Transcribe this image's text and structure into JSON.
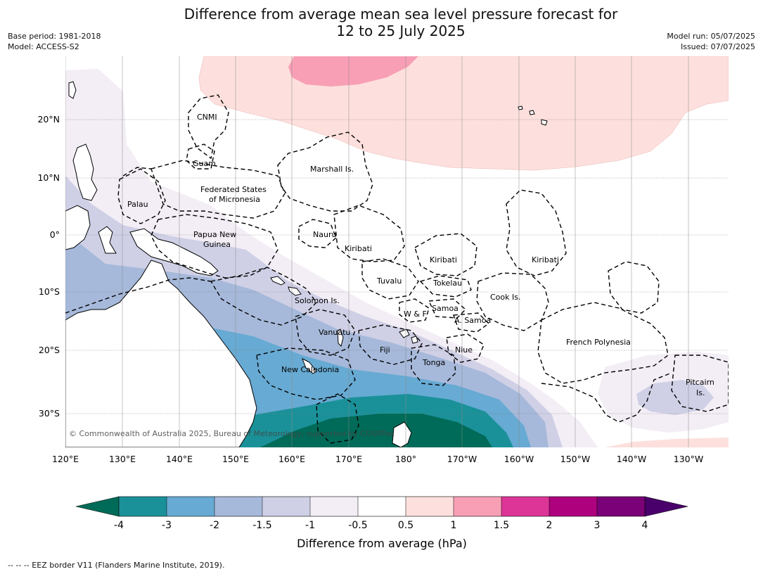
{
  "header": {
    "title_line1": "Difference from average mean sea level pressure forecast for",
    "title_line2": "12 to 25 July 2025",
    "base_period": "Base period: 1981-2018",
    "model": "Model: ACCESS-S2",
    "model_run": "Model run: 05/07/2025",
    "issued": "Issued: 07/07/2025"
  },
  "map": {
    "lon_labels": [
      "120°E",
      "130°E",
      "140°E",
      "150°E",
      "160°E",
      "170°E",
      "180°",
      "170°W",
      "160°W",
      "150°W",
      "140°W",
      "130°W"
    ],
    "lat_labels": [
      "20°N",
      "10°N",
      "0°",
      "10°S",
      "20°S",
      "30°S"
    ],
    "copyright": "© Commonwealth of Australia 2025, Bureau of Meteorology, supported by COSPPac",
    "regions": [
      {
        "id": "cnmi",
        "label": "CNMI"
      },
      {
        "id": "guam",
        "label": "Guam"
      },
      {
        "id": "marshall",
        "label": "Marshall Is."
      },
      {
        "id": "fsm1",
        "label": "Federated States"
      },
      {
        "id": "fsm2",
        "label": "of Micronesia"
      },
      {
        "id": "palau",
        "label": "Palau"
      },
      {
        "id": "png1",
        "label": "Papua New"
      },
      {
        "id": "png2",
        "label": "Guinea"
      },
      {
        "id": "nauru",
        "label": "Nauru"
      },
      {
        "id": "kiribati1",
        "label": "Kiribati"
      },
      {
        "id": "kiribati2",
        "label": "Kiribati"
      },
      {
        "id": "kiribati3",
        "label": "Kiribati"
      },
      {
        "id": "tuvalu",
        "label": "Tuvalu"
      },
      {
        "id": "tokelau",
        "label": "Tokelau"
      },
      {
        "id": "solomon",
        "label": "Solomon Is."
      },
      {
        "id": "cook",
        "label": "Cook Is."
      },
      {
        "id": "wf",
        "label": "W & F"
      },
      {
        "id": "samoa",
        "label": "Samoa"
      },
      {
        "id": "asamoa",
        "label": "A. Samoa"
      },
      {
        "id": "vanuatu",
        "label": "Vanuatu"
      },
      {
        "id": "fiji",
        "label": "Fiji"
      },
      {
        "id": "niue",
        "label": "Niue"
      },
      {
        "id": "tonga",
        "label": "Tonga"
      },
      {
        "id": "frpoly",
        "label": "French Polynesia"
      },
      {
        "id": "newcal",
        "label": "New Caledonia"
      },
      {
        "id": "pitcairn1",
        "label": "Pitcairn"
      },
      {
        "id": "pitcairn2",
        "label": "Is."
      }
    ],
    "colors": {
      "land": "#ffffff",
      "minus4": "#006b58",
      "minus3": "#1a9199",
      "minus2": "#67aad3",
      "minus15": "#a6b9da",
      "minus1": "#cfd0e6",
      "minus05": "#f3edf5",
      "plus05": "#fde0dd",
      "plus1": "#f89fb6",
      "plus15": "#dd3497",
      "plus2": "#ae017e",
      "plus3": "#7a0177",
      "plus4": "#49006a"
    }
  },
  "colorbar": {
    "ticks": [
      "-4",
      "-3",
      "-2",
      "-1.5",
      "-1",
      "-0.5",
      "0.5",
      "1",
      "1.5",
      "2",
      "3",
      "4"
    ],
    "label": "Difference from average (hPa)",
    "bins": [
      "#1a9199",
      "#67aad3",
      "#a6b9da",
      "#cfd0e6",
      "#f3edf5",
      "#ffffff",
      "#fde0dd",
      "#f89fb6",
      "#dd3497",
      "#ae017e",
      "#7a0177"
    ],
    "low_extend": "#006b58",
    "high_extend": "#49006a"
  },
  "footer": {
    "text": "--  --  -- EEZ border V11 (Flanders Marine Institute, 2019)."
  }
}
